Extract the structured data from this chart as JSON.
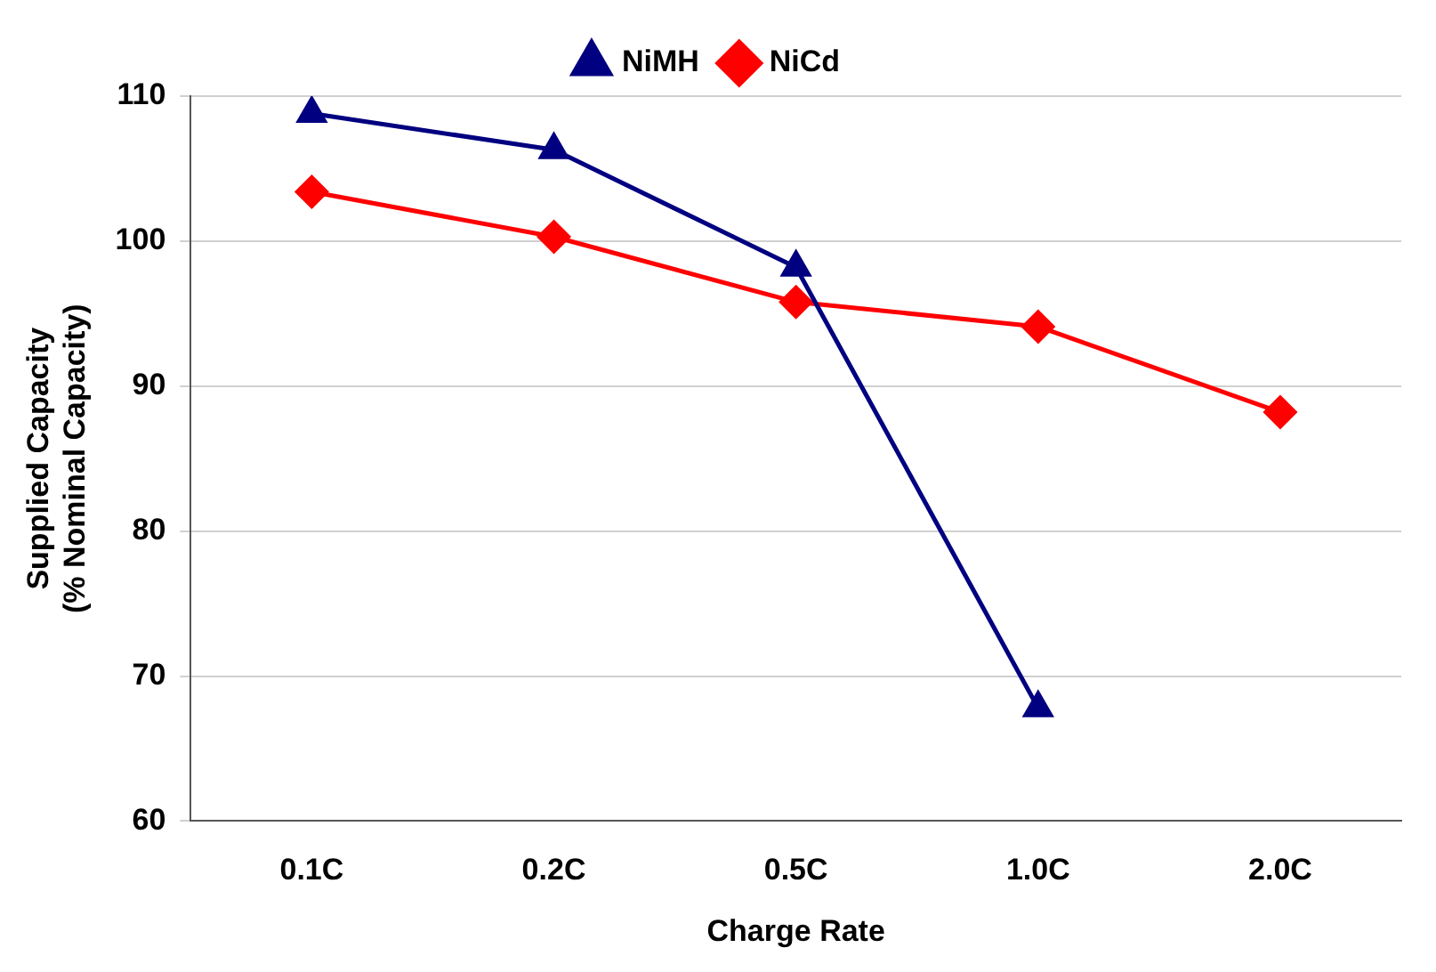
{
  "chart_data": {
    "type": "line",
    "xlabel": "Charge Rate",
    "ylabel": "Supplied Capacity\n(% Nominal Capacity)",
    "categories": [
      "0.1C",
      "0.2C",
      "0.5C",
      "1.0C",
      "2.0C"
    ],
    "series": [
      {
        "name": "NiMH",
        "color": "#000080",
        "marker": "triangle",
        "values": [
          108.8,
          106.3,
          98.2,
          67.8,
          null
        ]
      },
      {
        "name": "NiCd",
        "color": "#ff0000",
        "marker": "diamond",
        "values": [
          103.4,
          100.3,
          95.8,
          94.1,
          88.2
        ]
      }
    ],
    "ylim": [
      60,
      110
    ],
    "yticks": [
      60,
      70,
      80,
      90,
      100,
      110
    ],
    "grid": "y",
    "legend": "top"
  }
}
